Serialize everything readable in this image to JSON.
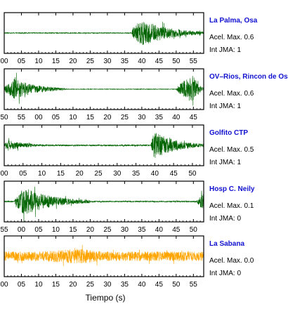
{
  "chart_data": {
    "type": "line",
    "xlabel": "Tiempo (s)",
    "colors": {
      "normal": "#006400",
      "highlight": "#ffa500"
    },
    "panels": [
      {
        "station": "La Palma, Osa",
        "accel_label": "Acel. Max. 0.6",
        "jma_label": "Int JMA: 1",
        "color": "#006400",
        "ticks": [
          "00",
          "05",
          "10",
          "15",
          "20",
          "25",
          "30",
          "35",
          "40",
          "45",
          "50",
          "55"
        ],
        "x_range_s": [
          0,
          58
        ],
        "tick_start_s": 0,
        "events": [
          {
            "start_s": 37,
            "peak_s": 40,
            "end_s": 58,
            "amplitude": 1.0
          }
        ],
        "background_noise": 0.03
      },
      {
        "station": "OV–Rios, Rincon de Os",
        "accel_label": "Acel. Max. 0.6",
        "jma_label": "Int JMA: 1",
        "color": "#006400",
        "ticks": [
          "50",
          "55",
          "00",
          "05",
          "10",
          "15",
          "20",
          "25",
          "30",
          "35",
          "40",
          "45"
        ],
        "x_range_s": [
          0,
          58
        ],
        "tick_start_s": 0,
        "events": [
          {
            "start_s": 0,
            "peak_s": 3,
            "end_s": 18,
            "amplitude": 0.75
          },
          {
            "start_s": 50,
            "peak_s": 55,
            "end_s": 58,
            "amplitude": 1.0
          }
        ],
        "background_noise": 0.02
      },
      {
        "station": "Golfito CTP",
        "accel_label": "Acel. Max. 0.5",
        "jma_label": "Int JMA: 1",
        "color": "#006400",
        "ticks": [
          "00",
          "05",
          "10",
          "15",
          "20",
          "25",
          "30",
          "35",
          "40",
          "45",
          "50"
        ],
        "x_range_s": [
          0,
          53
        ],
        "tick_start_s": 0,
        "events": [
          {
            "start_s": 0,
            "peak_s": 1,
            "end_s": 12,
            "amplitude": 0.4
          },
          {
            "start_s": 39,
            "peak_s": 40,
            "end_s": 53,
            "amplitude": 1.0
          }
        ],
        "background_noise": 0.05
      },
      {
        "station": "Hosp C. Neily",
        "accel_label": "Acel. Max. 0.1",
        "jma_label": "Int JMA: 0",
        "color": "#006400",
        "ticks": [
          "55",
          "00",
          "05",
          "10",
          "15",
          "20",
          "25",
          "30",
          "35",
          "40",
          "45",
          "50"
        ],
        "x_range_s": [
          0,
          58
        ],
        "tick_start_s": 0,
        "events": [
          {
            "start_s": 3,
            "peak_s": 6,
            "end_s": 25,
            "amplitude": 1.0
          },
          {
            "start_s": 56,
            "peak_s": 58,
            "end_s": 58,
            "amplitude": 0.6
          }
        ],
        "background_noise": 0.04
      },
      {
        "station": "La Sabana",
        "accel_label": "Acel. Max. 0.0",
        "jma_label": "Int JMA: 0",
        "color": "#ffa500",
        "ticks": [
          "00",
          "05",
          "10",
          "15",
          "20",
          "25",
          "30",
          "35",
          "40",
          "45",
          "50",
          "55"
        ],
        "x_range_s": [
          0,
          58
        ],
        "tick_start_s": 0,
        "events": [
          {
            "start_s": 0,
            "peak_s": 22,
            "end_s": 58,
            "amplitude": 0.55
          }
        ],
        "background_noise": 0.35
      }
    ]
  }
}
